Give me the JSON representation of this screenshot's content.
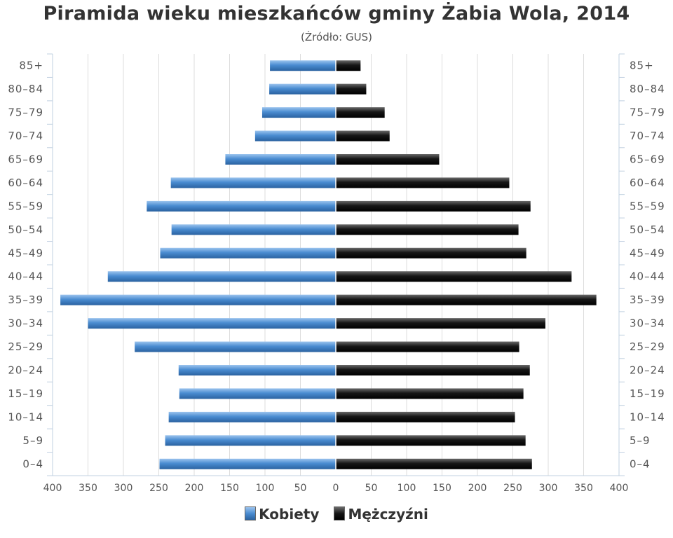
{
  "title": "Piramida wieku mieszkańców gminy Żabia Wola, 2014",
  "subtitle": "(Źródło: GUS)",
  "chart_data": {
    "type": "bar",
    "orientation": "horizontal-population-pyramid",
    "title": "Piramida wieku mieszkańców gminy Żabia Wola, 2014",
    "subtitle": "(Źródło: GUS)",
    "categories": [
      "85+",
      "80-84",
      "75-79",
      "70-74",
      "65-69",
      "60-64",
      "55-59",
      "50-54",
      "45-49",
      "40-44",
      "35-39",
      "30-34",
      "25-29",
      "20-24",
      "15-19",
      "10-14",
      "5-9",
      "0-4"
    ],
    "category_labels": [
      "85+",
      "80–84",
      "75–79",
      "70–74",
      "65–69",
      "60–64",
      "55–59",
      "50–54",
      "45–49",
      "40–44",
      "35–39",
      "30–34",
      "25–29",
      "20–24",
      "15–19",
      "10–14",
      "5–9",
      "0–4"
    ],
    "series": [
      {
        "name": "Kobiety",
        "color": "#4a8cd1",
        "side": "left",
        "values": [
          93,
          94,
          104,
          114,
          156,
          233,
          267,
          232,
          248,
          322,
          389,
          350,
          284,
          222,
          221,
          236,
          241,
          249
        ]
      },
      {
        "name": "Mężczyźni",
        "color": "#111111",
        "side": "right",
        "values": [
          35,
          43,
          69,
          76,
          146,
          245,
          275,
          258,
          269,
          333,
          368,
          296,
          259,
          274,
          265,
          253,
          268,
          277
        ]
      }
    ],
    "xlim": [
      -400,
      400
    ],
    "x_ticks": [
      400,
      350,
      300,
      250,
      200,
      150,
      100,
      50,
      0,
      50,
      100,
      150,
      200,
      250,
      300,
      350,
      400
    ],
    "grid": "vertical",
    "legend_position": "bottom-center"
  },
  "legend": [
    {
      "label": "Kobiety",
      "color": "#4a8cd1"
    },
    {
      "label": "Mężczyźni",
      "color": "#111111"
    }
  ]
}
